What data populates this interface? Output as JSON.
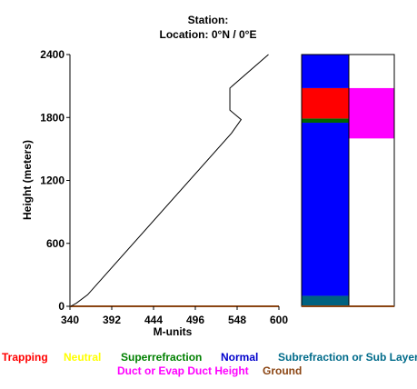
{
  "header": {
    "station_label": "Station:",
    "location_line": "Location:   0°N /   0°E"
  },
  "chart_data": [
    {
      "type": "line",
      "title": "",
      "xlabel": "M-units",
      "ylabel": "Height (meters)",
      "xlim": [
        340,
        600
      ],
      "ylim": [
        0,
        2400
      ],
      "xticks": [
        "340",
        "392",
        "444",
        "496",
        "548",
        "600"
      ],
      "yticks": [
        "0",
        "600",
        "1200",
        "1800",
        "2400"
      ],
      "series": [
        {
          "color": "#000000",
          "x": [
            341,
            348,
            362,
            541,
            553,
            539,
            539,
            587
          ],
          "y": [
            0,
            30,
            110,
            1650,
            1780,
            1870,
            2080,
            2400
          ]
        }
      ]
    },
    {
      "type": "bar",
      "title": "",
      "ylim": [
        0,
        2400
      ],
      "columns": [
        {
          "segments": [
            {
              "y0": 0,
              "y1": 100,
              "layer": "Subrefraction or Sub Layer",
              "color": "#006280"
            },
            {
              "y0": 100,
              "y1": 1750,
              "layer": "Normal",
              "color": "#0000ff"
            },
            {
              "y0": 1750,
              "y1": 1790,
              "layer": "Superrefraction",
              "color": "#006400"
            },
            {
              "y0": 1790,
              "y1": 2080,
              "layer": "Trapping",
              "color": "#ff0000"
            },
            {
              "y0": 2080,
              "y1": 2400,
              "layer": "Normal",
              "color": "#0000ff"
            }
          ]
        },
        {
          "segments": [
            {
              "y0": 1600,
              "y1": 2080,
              "layer": "Duct or Evap Duct Height",
              "color": "#ff00ff"
            }
          ]
        }
      ]
    }
  ],
  "legend": {
    "row1": [
      {
        "label": "Trapping",
        "color": "#ff0000"
      },
      {
        "label": "Neutral",
        "color": "#ffff00"
      },
      {
        "label": "Superrefraction",
        "color": "#008000"
      },
      {
        "label": "Normal",
        "color": "#0000cc"
      },
      {
        "label": "Subrefraction or Sub Layer",
        "color": "#006b8a"
      }
    ],
    "row2": [
      {
        "label": "Duct or Evap Duct Height",
        "color": "#ff00ff"
      },
      {
        "label": "Ground",
        "color": "#8b4513"
      }
    ]
  }
}
